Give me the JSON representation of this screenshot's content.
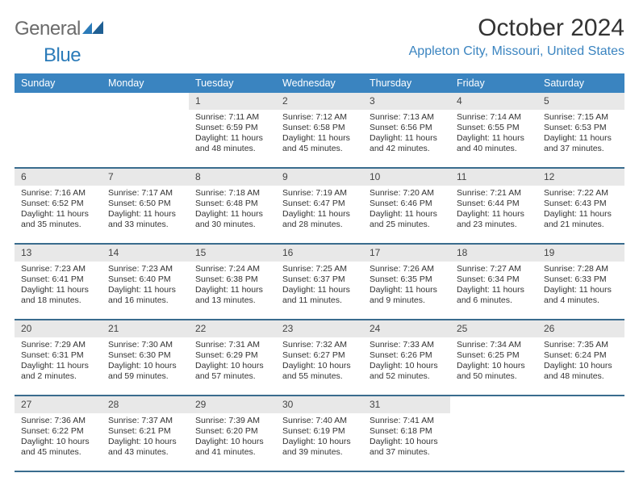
{
  "brand": {
    "part1": "General",
    "part2": "Blue",
    "logo_color": "#2b7bb9",
    "text_color": "#6b6b6b"
  },
  "title": "October 2024",
  "location": "Appleton City, Missouri, United States",
  "colors": {
    "header_bg": "#3a84c0",
    "header_text": "#ffffff",
    "daynum_bg": "#e8e8e8",
    "rule": "#3a6c8e",
    "location_text": "#3a84c0",
    "title_text": "#333333",
    "body_text": "#333333",
    "page_bg": "#ffffff"
  },
  "typography": {
    "title_fontsize": 30,
    "location_fontsize": 16,
    "dow_fontsize": 12.5,
    "daynum_fontsize": 12,
    "body_fontsize": 10.5,
    "logo_fontsize": 24
  },
  "days_of_week": [
    "Sunday",
    "Monday",
    "Tuesday",
    "Wednesday",
    "Thursday",
    "Friday",
    "Saturday"
  ],
  "weeks": [
    [
      null,
      null,
      {
        "n": "1",
        "sunrise": "Sunrise: 7:11 AM",
        "sunset": "Sunset: 6:59 PM",
        "daylight1": "Daylight: 11 hours",
        "daylight2": "and 48 minutes."
      },
      {
        "n": "2",
        "sunrise": "Sunrise: 7:12 AM",
        "sunset": "Sunset: 6:58 PM",
        "daylight1": "Daylight: 11 hours",
        "daylight2": "and 45 minutes."
      },
      {
        "n": "3",
        "sunrise": "Sunrise: 7:13 AM",
        "sunset": "Sunset: 6:56 PM",
        "daylight1": "Daylight: 11 hours",
        "daylight2": "and 42 minutes."
      },
      {
        "n": "4",
        "sunrise": "Sunrise: 7:14 AM",
        "sunset": "Sunset: 6:55 PM",
        "daylight1": "Daylight: 11 hours",
        "daylight2": "and 40 minutes."
      },
      {
        "n": "5",
        "sunrise": "Sunrise: 7:15 AM",
        "sunset": "Sunset: 6:53 PM",
        "daylight1": "Daylight: 11 hours",
        "daylight2": "and 37 minutes."
      }
    ],
    [
      {
        "n": "6",
        "sunrise": "Sunrise: 7:16 AM",
        "sunset": "Sunset: 6:52 PM",
        "daylight1": "Daylight: 11 hours",
        "daylight2": "and 35 minutes."
      },
      {
        "n": "7",
        "sunrise": "Sunrise: 7:17 AM",
        "sunset": "Sunset: 6:50 PM",
        "daylight1": "Daylight: 11 hours",
        "daylight2": "and 33 minutes."
      },
      {
        "n": "8",
        "sunrise": "Sunrise: 7:18 AM",
        "sunset": "Sunset: 6:48 PM",
        "daylight1": "Daylight: 11 hours",
        "daylight2": "and 30 minutes."
      },
      {
        "n": "9",
        "sunrise": "Sunrise: 7:19 AM",
        "sunset": "Sunset: 6:47 PM",
        "daylight1": "Daylight: 11 hours",
        "daylight2": "and 28 minutes."
      },
      {
        "n": "10",
        "sunrise": "Sunrise: 7:20 AM",
        "sunset": "Sunset: 6:46 PM",
        "daylight1": "Daylight: 11 hours",
        "daylight2": "and 25 minutes."
      },
      {
        "n": "11",
        "sunrise": "Sunrise: 7:21 AM",
        "sunset": "Sunset: 6:44 PM",
        "daylight1": "Daylight: 11 hours",
        "daylight2": "and 23 minutes."
      },
      {
        "n": "12",
        "sunrise": "Sunrise: 7:22 AM",
        "sunset": "Sunset: 6:43 PM",
        "daylight1": "Daylight: 11 hours",
        "daylight2": "and 21 minutes."
      }
    ],
    [
      {
        "n": "13",
        "sunrise": "Sunrise: 7:23 AM",
        "sunset": "Sunset: 6:41 PM",
        "daylight1": "Daylight: 11 hours",
        "daylight2": "and 18 minutes."
      },
      {
        "n": "14",
        "sunrise": "Sunrise: 7:23 AM",
        "sunset": "Sunset: 6:40 PM",
        "daylight1": "Daylight: 11 hours",
        "daylight2": "and 16 minutes."
      },
      {
        "n": "15",
        "sunrise": "Sunrise: 7:24 AM",
        "sunset": "Sunset: 6:38 PM",
        "daylight1": "Daylight: 11 hours",
        "daylight2": "and 13 minutes."
      },
      {
        "n": "16",
        "sunrise": "Sunrise: 7:25 AM",
        "sunset": "Sunset: 6:37 PM",
        "daylight1": "Daylight: 11 hours",
        "daylight2": "and 11 minutes."
      },
      {
        "n": "17",
        "sunrise": "Sunrise: 7:26 AM",
        "sunset": "Sunset: 6:35 PM",
        "daylight1": "Daylight: 11 hours",
        "daylight2": "and 9 minutes."
      },
      {
        "n": "18",
        "sunrise": "Sunrise: 7:27 AM",
        "sunset": "Sunset: 6:34 PM",
        "daylight1": "Daylight: 11 hours",
        "daylight2": "and 6 minutes."
      },
      {
        "n": "19",
        "sunrise": "Sunrise: 7:28 AM",
        "sunset": "Sunset: 6:33 PM",
        "daylight1": "Daylight: 11 hours",
        "daylight2": "and 4 minutes."
      }
    ],
    [
      {
        "n": "20",
        "sunrise": "Sunrise: 7:29 AM",
        "sunset": "Sunset: 6:31 PM",
        "daylight1": "Daylight: 11 hours",
        "daylight2": "and 2 minutes."
      },
      {
        "n": "21",
        "sunrise": "Sunrise: 7:30 AM",
        "sunset": "Sunset: 6:30 PM",
        "daylight1": "Daylight: 10 hours",
        "daylight2": "and 59 minutes."
      },
      {
        "n": "22",
        "sunrise": "Sunrise: 7:31 AM",
        "sunset": "Sunset: 6:29 PM",
        "daylight1": "Daylight: 10 hours",
        "daylight2": "and 57 minutes."
      },
      {
        "n": "23",
        "sunrise": "Sunrise: 7:32 AM",
        "sunset": "Sunset: 6:27 PM",
        "daylight1": "Daylight: 10 hours",
        "daylight2": "and 55 minutes."
      },
      {
        "n": "24",
        "sunrise": "Sunrise: 7:33 AM",
        "sunset": "Sunset: 6:26 PM",
        "daylight1": "Daylight: 10 hours",
        "daylight2": "and 52 minutes."
      },
      {
        "n": "25",
        "sunrise": "Sunrise: 7:34 AM",
        "sunset": "Sunset: 6:25 PM",
        "daylight1": "Daylight: 10 hours",
        "daylight2": "and 50 minutes."
      },
      {
        "n": "26",
        "sunrise": "Sunrise: 7:35 AM",
        "sunset": "Sunset: 6:24 PM",
        "daylight1": "Daylight: 10 hours",
        "daylight2": "and 48 minutes."
      }
    ],
    [
      {
        "n": "27",
        "sunrise": "Sunrise: 7:36 AM",
        "sunset": "Sunset: 6:22 PM",
        "daylight1": "Daylight: 10 hours",
        "daylight2": "and 45 minutes."
      },
      {
        "n": "28",
        "sunrise": "Sunrise: 7:37 AM",
        "sunset": "Sunset: 6:21 PM",
        "daylight1": "Daylight: 10 hours",
        "daylight2": "and 43 minutes."
      },
      {
        "n": "29",
        "sunrise": "Sunrise: 7:39 AM",
        "sunset": "Sunset: 6:20 PM",
        "daylight1": "Daylight: 10 hours",
        "daylight2": "and 41 minutes."
      },
      {
        "n": "30",
        "sunrise": "Sunrise: 7:40 AM",
        "sunset": "Sunset: 6:19 PM",
        "daylight1": "Daylight: 10 hours",
        "daylight2": "and 39 minutes."
      },
      {
        "n": "31",
        "sunrise": "Sunrise: 7:41 AM",
        "sunset": "Sunset: 6:18 PM",
        "daylight1": "Daylight: 10 hours",
        "daylight2": "and 37 minutes."
      },
      null,
      null
    ]
  ]
}
